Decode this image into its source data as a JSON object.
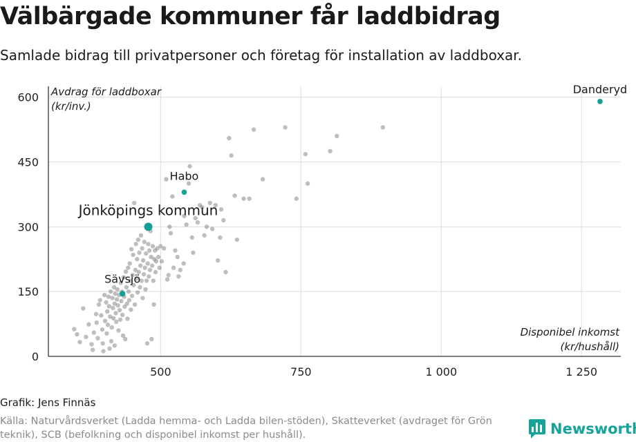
{
  "header": {
    "title": "Välbärgade kommuner får laddbidrag",
    "subtitle": "Samlade bidrag till privatpersoner och företag för installation av laddboxar."
  },
  "footer": {
    "credit": "Grafik: Jens Finnäs",
    "source": "Källa: Naturvårdsverket (Ladda hemma- och Ladda bilen-stöden), Skatteverket (avdraget för Grön teknik), SCB (befolkning och disponibel inkomst per hushåll).",
    "logo_name": "Newsworthy"
  },
  "colors": {
    "highlight": "#12a096",
    "points": "#7d7d7d",
    "grid": "#dcdcdc",
    "brand": "#16a39a"
  },
  "chart_data": {
    "type": "scatter",
    "ylabel_lines": [
      "Avdrag för laddboxar",
      "(kr/inv.)"
    ],
    "xlabel_lines": [
      "Disponibel inkomst",
      "(kr/hushåll)"
    ],
    "xlim": [
      300,
      1320
    ],
    "ylim": [
      0,
      625
    ],
    "x_ticks": [
      500,
      750,
      1000,
      1250
    ],
    "x_tick_labels": [
      "500",
      "750",
      "1 000",
      "1 250"
    ],
    "y_ticks": [
      0,
      150,
      300,
      450,
      600
    ],
    "y_tick_labels": [
      "0",
      "150",
      "300",
      "450",
      "600"
    ],
    "grid": true,
    "highlighted": [
      {
        "label": "Danderyd",
        "x": 1283,
        "y": 590
      },
      {
        "label": "Habo",
        "x": 542,
        "y": 380
      },
      {
        "label": "Jönköpings kommun",
        "x": 478,
        "y": 300
      },
      {
        "label": "Sävsjö",
        "x": 432,
        "y": 145
      }
    ],
    "points": [
      [
        346,
        63
      ],
      [
        351,
        51
      ],
      [
        356,
        33
      ],
      [
        362,
        111
      ],
      [
        367,
        45
      ],
      [
        372,
        74
      ],
      [
        377,
        28
      ],
      [
        379,
        15
      ],
      [
        381,
        55
      ],
      [
        385,
        98
      ],
      [
        386,
        78
      ],
      [
        388,
        42
      ],
      [
        390,
        120
      ],
      [
        392,
        130
      ],
      [
        394,
        95
      ],
      [
        396,
        62
      ],
      [
        397,
        30
      ],
      [
        398,
        12
      ],
      [
        400,
        142
      ],
      [
        401,
        82
      ],
      [
        403,
        125
      ],
      [
        404,
        53
      ],
      [
        405,
        104
      ],
      [
        406,
        73
      ],
      [
        407,
        138
      ],
      [
        408,
        116
      ],
      [
        409,
        18
      ],
      [
        410,
        92
      ],
      [
        411,
        150
      ],
      [
        412,
        35
      ],
      [
        413,
        67
      ],
      [
        414,
        135
      ],
      [
        415,
        112
      ],
      [
        416,
        88
      ],
      [
        417,
        160
      ],
      [
        418,
        25
      ],
      [
        418,
        122
      ],
      [
        419,
        145
      ],
      [
        420,
        100
      ],
      [
        421,
        80
      ],
      [
        422,
        132
      ],
      [
        423,
        155
      ],
      [
        424,
        118
      ],
      [
        425,
        60
      ],
      [
        426,
        142
      ],
      [
        427,
        107
      ],
      [
        428,
        85
      ],
      [
        429,
        170
      ],
      [
        430,
        128
      ],
      [
        431,
        150
      ],
      [
        432,
        96
      ],
      [
        433,
        48
      ],
      [
        434,
        183
      ],
      [
        435,
        138
      ],
      [
        436,
        115
      ],
      [
        437,
        40
      ],
      [
        438,
        196
      ],
      [
        439,
        160
      ],
      [
        440,
        122
      ],
      [
        441,
        87
      ],
      [
        442,
        205
      ],
      [
        443,
        150
      ],
      [
        444,
        130
      ],
      [
        445,
        215
      ],
      [
        446,
        175
      ],
      [
        447,
        108
      ],
      [
        448,
        248
      ],
      [
        449,
        140
      ],
      [
        450,
        188
      ],
      [
        451,
        235
      ],
      [
        452,
        165
      ],
      [
        453,
        355
      ],
      [
        454,
        120
      ],
      [
        455,
        200
      ],
      [
        456,
        260
      ],
      [
        457,
        180
      ],
      [
        458,
        225
      ],
      [
        459,
        148
      ],
      [
        460,
        270
      ],
      [
        461,
        195
      ],
      [
        462,
        240
      ],
      [
        463,
        160
      ],
      [
        464,
        210
      ],
      [
        465,
        280
      ],
      [
        466,
        175
      ],
      [
        467,
        250
      ],
      [
        468,
        135
      ],
      [
        469,
        222
      ],
      [
        470,
        190
      ],
      [
        471,
        265
      ],
      [
        472,
        205
      ],
      [
        473,
        155
      ],
      [
        474,
        238
      ],
      [
        475,
        175
      ],
      [
        476,
        30
      ],
      [
        477,
        215
      ],
      [
        478,
        260
      ],
      [
        479,
        185
      ],
      [
        480,
        245
      ],
      [
        481,
        200
      ],
      [
        482,
        290
      ],
      [
        483,
        230
      ],
      [
        484,
        40
      ],
      [
        485,
        210
      ],
      [
        486,
        255
      ],
      [
        487,
        175
      ],
      [
        488,
        120
      ],
      [
        489,
        225
      ],
      [
        490,
        245
      ],
      [
        491,
        195
      ],
      [
        492,
        220
      ],
      [
        494,
        250
      ],
      [
        496,
        230
      ],
      [
        498,
        205
      ],
      [
        500,
        255
      ],
      [
        502,
        220
      ],
      [
        506,
        250
      ],
      [
        510,
        410
      ],
      [
        512,
        178
      ],
      [
        514,
        188
      ],
      [
        516,
        300
      ],
      [
        518,
        285
      ],
      [
        521,
        370
      ],
      [
        523,
        205
      ],
      [
        526,
        245
      ],
      [
        530,
        230
      ],
      [
        532,
        185
      ],
      [
        535,
        200
      ],
      [
        541,
        215
      ],
      [
        542,
        325
      ],
      [
        546,
        305
      ],
      [
        550,
        400
      ],
      [
        552,
        440
      ],
      [
        556,
        275
      ],
      [
        558,
        240
      ],
      [
        562,
        320
      ],
      [
        566,
        310
      ],
      [
        570,
        350
      ],
      [
        574,
        345
      ],
      [
        578,
        280
      ],
      [
        582,
        300
      ],
      [
        588,
        355
      ],
      [
        592,
        295
      ],
      [
        598,
        350
      ],
      [
        602,
        222
      ],
      [
        606,
        275
      ],
      [
        608,
        340
      ],
      [
        612,
        315
      ],
      [
        616,
        195
      ],
      [
        622,
        505
      ],
      [
        626,
        465
      ],
      [
        632,
        372
      ],
      [
        636,
        270
      ],
      [
        648,
        365
      ],
      [
        658,
        365
      ],
      [
        666,
        525
      ],
      [
        682,
        410
      ],
      [
        722,
        530
      ],
      [
        742,
        365
      ],
      [
        758,
        468
      ],
      [
        762,
        400
      ],
      [
        802,
        475
      ],
      [
        814,
        510
      ],
      [
        896,
        530
      ]
    ]
  }
}
